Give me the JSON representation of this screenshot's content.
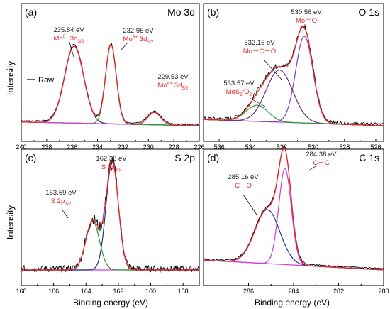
{
  "colors": {
    "raw": "#000000",
    "fit": "#e8262b",
    "blue": "#1f2f8a",
    "green": "#2c9b2c",
    "purple": "#7b3fc4",
    "magenta": "#d23bd8",
    "pink": "#c64bcf",
    "darkpurple": "#6a2a8f"
  },
  "ylabel": "Intensity",
  "xlabel": "Binding energy (eV)",
  "chart_data": [
    {
      "type": "line",
      "panel": "(a)",
      "title": "Mo 3d",
      "xlim": [
        240,
        226
      ],
      "xticks": [
        240,
        238,
        236,
        234,
        232,
        230,
        228,
        226
      ],
      "legend": {
        "label": "Raw",
        "placement": "left"
      },
      "peaks": [
        {
          "center": 235.84,
          "height": 0.62,
          "width": 0.75,
          "color": "#1f2f8a"
        },
        {
          "center": 232.95,
          "height": 0.64,
          "width": 0.42,
          "color": "#2c9b2c"
        },
        {
          "center": 229.53,
          "height": 0.1,
          "width": 0.5,
          "color": "#d23bd8"
        }
      ],
      "background": {
        "left": 0.03,
        "right": 0.0
      },
      "annotations": [
        {
          "value": "235.84 eV",
          "label": "Mo",
          "sup": "6+",
          "rest": " 3d",
          "sub": "3/2"
        },
        {
          "value": "232.95 eV",
          "label": "Mo",
          "sup": "6+",
          "rest": " 3d",
          "sub": "5/2"
        },
        {
          "value": "229.53 eV",
          "label": "Mo",
          "sup": "4+",
          "rest": " 3d",
          "sub": "5/2"
        }
      ]
    },
    {
      "type": "line",
      "panel": "(b)",
      "title": "O 1s",
      "xlim": [
        537,
        525.5
      ],
      "xticks": [
        536,
        534,
        532,
        530,
        528,
        526
      ],
      "peaks": [
        {
          "center": 530.56,
          "height": 0.7,
          "width": 0.55,
          "color": "#7b3fc4"
        },
        {
          "center": 532.15,
          "height": 0.42,
          "width": 0.85,
          "color": "#6a2a8f"
        },
        {
          "center": 533.57,
          "height": 0.13,
          "width": 0.7,
          "color": "#2c9b2c"
        }
      ],
      "background": {
        "left": 0.05,
        "right": 0.0
      },
      "annotations": [
        {
          "value": "530.56 eV",
          "label": "Mo＝O"
        },
        {
          "value": "532.15 eV",
          "label": "Mo－C－O"
        },
        {
          "value": "533.57 eV",
          "label": "MoS",
          "sub": "2",
          "rest": "/O",
          "sub2": "2"
        }
      ]
    },
    {
      "type": "line",
      "panel": "(c)",
      "title": "S 2p",
      "xlim": [
        168,
        157
      ],
      "xticks": [
        168,
        166,
        164,
        162,
        160,
        158
      ],
      "peaks": [
        {
          "center": 162.38,
          "height": 0.88,
          "width": 0.38,
          "color": "#1f2f8a"
        },
        {
          "center": 163.59,
          "height": 0.4,
          "width": 0.42,
          "color": "#2c9b2c"
        }
      ],
      "background": {
        "left": 0.0,
        "right": 0.0
      },
      "annotations": [
        {
          "value": "162.38 eV",
          "label": "S 2p",
          "sub": "3/2"
        },
        {
          "value": "163.59 eV",
          "label": "S 2p",
          "sub": "1/2"
        }
      ]
    },
    {
      "type": "line",
      "panel": "(d)",
      "title": "C 1s",
      "xlim": [
        288,
        280
      ],
      "xticks": [
        286,
        284,
        282,
        280
      ],
      "peaks": [
        {
          "center": 284.38,
          "height": 0.78,
          "width": 0.28,
          "color": "#d23bd8"
        },
        {
          "center": 285.16,
          "height": 0.44,
          "width": 0.55,
          "color": "#1f2f8a"
        }
      ],
      "background": {
        "left": 0.08,
        "right": 0.0
      },
      "annotations": [
        {
          "value": "284.38 eV",
          "label": "C－C"
        },
        {
          "value": "285.16 eV",
          "label": "C－O"
        }
      ]
    }
  ]
}
